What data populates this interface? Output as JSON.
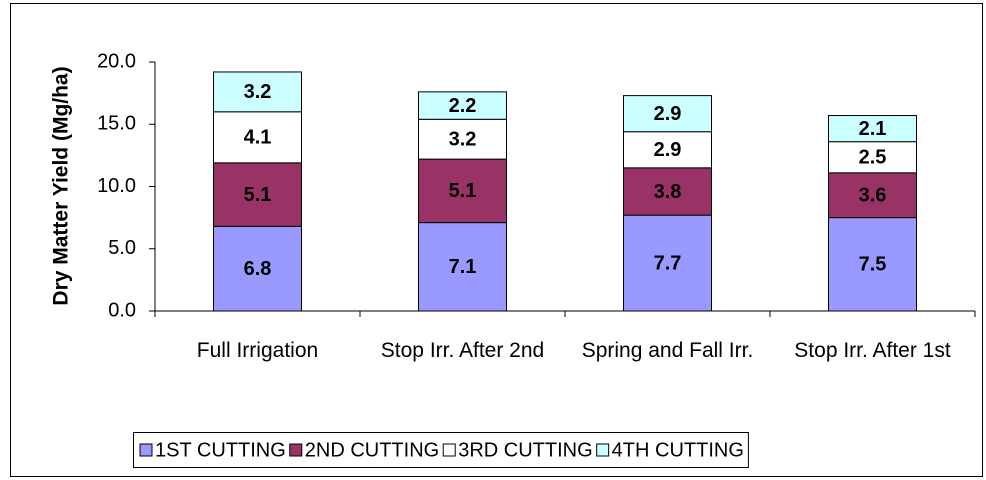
{
  "chart_data": {
    "type": "stacked_bar",
    "y_label": "Dry Matter Yield (Mg/ha)",
    "categories": [
      "Full Irrigation",
      "Stop Irr. After 2nd",
      "Spring and Fall Irr.",
      "Stop Irr. After 1st"
    ],
    "series": [
      {
        "name": "1ST CUTTING",
        "color": "#9999ff",
        "values": [
          6.8,
          7.1,
          7.7,
          7.5
        ]
      },
      {
        "name": "2ND CUTTING",
        "color": "#993366",
        "values": [
          5.1,
          5.1,
          3.8,
          3.6
        ]
      },
      {
        "name": "3RD CUTTING",
        "color": "#ffffff",
        "values": [
          4.1,
          3.2,
          2.9,
          2.5
        ]
      },
      {
        "name": "4TH CUTTING",
        "color": "#ccffff",
        "values": [
          3.2,
          2.2,
          2.9,
          2.1
        ]
      }
    ],
    "ylim": [
      0,
      20
    ],
    "yticks": [
      {
        "value": 0,
        "label": "0.0"
      },
      {
        "value": 5,
        "label": "5.0"
      },
      {
        "value": 10,
        "label": "10.0"
      },
      {
        "value": 15,
        "label": "15.0"
      },
      {
        "value": 20,
        "label": "20.0"
      }
    ],
    "grid": false,
    "legend": "bottom"
  }
}
